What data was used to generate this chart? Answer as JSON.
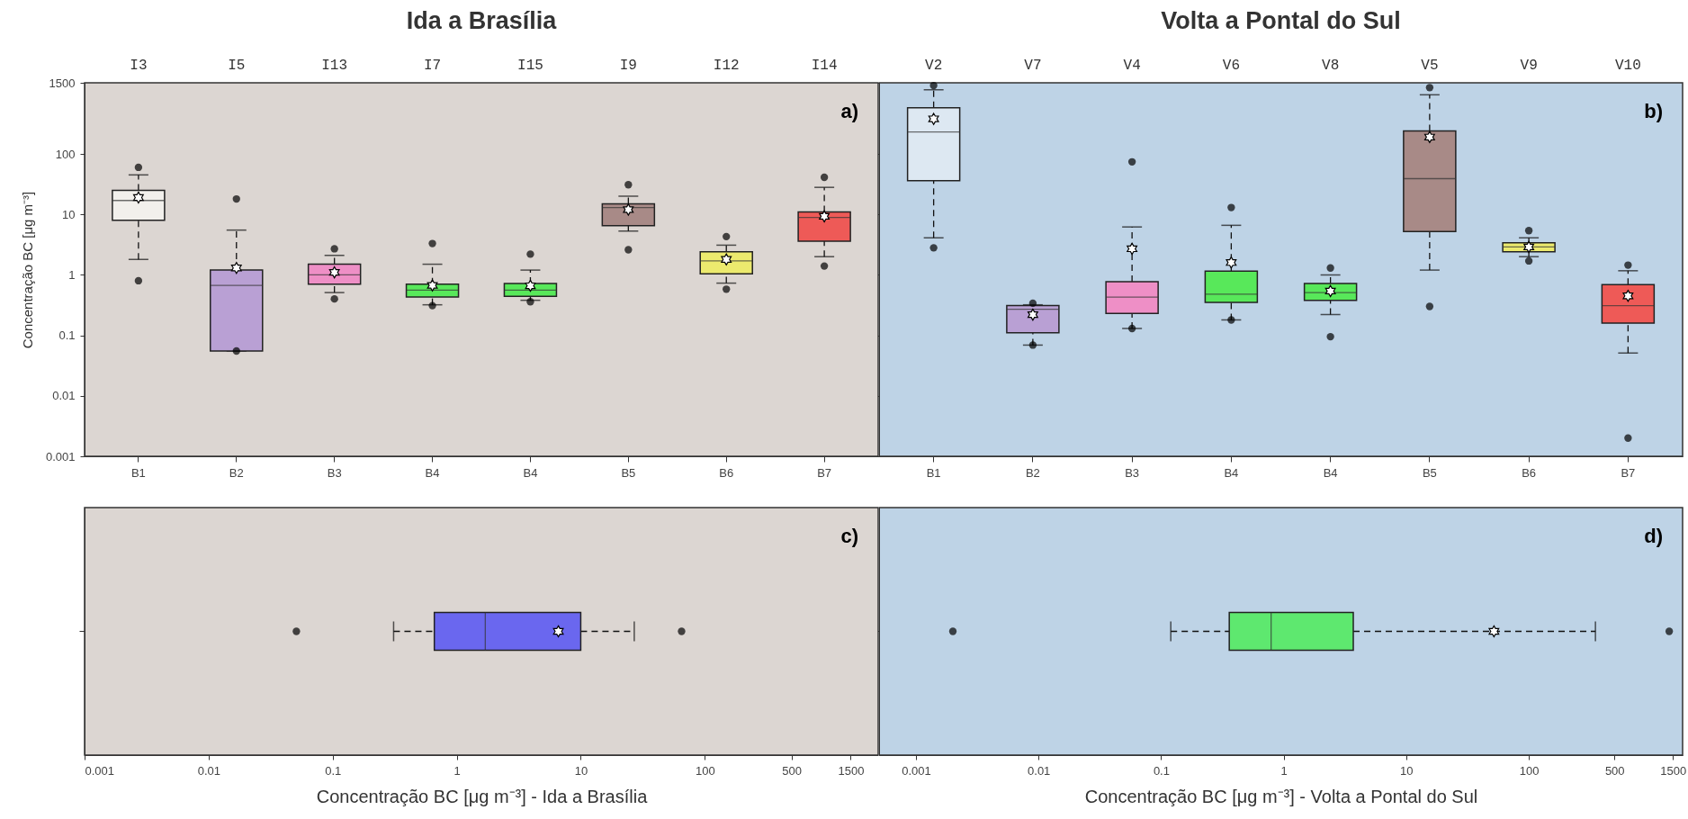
{
  "chart_data": [
    {
      "type": "box",
      "title": "Ida a Brasília",
      "ylabel": "Concentração BC [μg m⁻³]",
      "categories": [
        "B1",
        "B2",
        "B3",
        "B4",
        "B4",
        "B5",
        "B6",
        "B7"
      ],
      "colors": [
        "#f2f0ec",
        "#b9a0d4",
        "#ee8fc6",
        "#58e85a",
        "#58e85a",
        "#a88a87",
        "#ecea6e",
        "#ee5a57"
      ],
      "log": "y",
      "ylim": [
        0.001,
        1500
      ],
      "yticks": [
        0.001,
        0.01,
        0.1,
        1,
        10,
        100,
        1500
      ],
      "marker": "circle",
      "boxes": [
        {
          "low": 1.8,
          "q1": 8,
          "median": 17,
          "q3": 25,
          "high": 45,
          "mean": 19,
          "outliers": [
            0.8,
            60
          ]
        },
        {
          "low": 0.055,
          "q1": 0.055,
          "median": 0.67,
          "q3": 1.2,
          "high": 5.5,
          "mean": 1.3,
          "outliers": [
            0.055,
            18
          ]
        },
        {
          "low": 0.51,
          "q1": 0.7,
          "median": 1.0,
          "q3": 1.5,
          "high": 2.1,
          "mean": 1.1,
          "outliers": [
            0.4,
            2.7
          ]
        },
        {
          "low": 0.32,
          "q1": 0.43,
          "median": 0.56,
          "q3": 0.7,
          "high": 1.5,
          "mean": 0.67,
          "outliers": [
            0.31,
            3.3
          ]
        },
        {
          "low": 0.38,
          "q1": 0.44,
          "median": 0.56,
          "q3": 0.72,
          "high": 1.2,
          "mean": 0.66,
          "outliers": [
            0.36,
            2.2
          ]
        },
        {
          "low": 5.3,
          "q1": 6.5,
          "median": 13,
          "q3": 15,
          "high": 20,
          "mean": 12,
          "outliers": [
            2.6,
            31
          ]
        },
        {
          "low": 0.73,
          "q1": 1.04,
          "median": 1.7,
          "q3": 2.4,
          "high": 3.1,
          "mean": 1.8,
          "outliers": [
            0.58,
            4.3
          ]
        },
        {
          "low": 2.0,
          "q1": 3.6,
          "median": 8.9,
          "q3": 11,
          "high": 28,
          "mean": 9.3,
          "outliers": [
            1.4,
            41
          ]
        }
      ],
      "annotations": [
        "a)",
        "I3",
        "I5",
        "I13",
        "I7",
        "I15",
        "I9",
        "I12",
        "I14"
      ]
    },
    {
      "type": "box",
      "title": "Volta a Pontal do Sul",
      "categories": [
        "B1",
        "B2",
        "B3",
        "B4",
        "B4",
        "B5",
        "B6",
        "B7"
      ],
      "colors": [
        "#dde8f2",
        "#b9a0d4",
        "#ee8fc6",
        "#58e85a",
        "#58e85a",
        "#a88a87",
        "#ecea6e",
        "#ee5a57"
      ],
      "log": "y",
      "ylim": [
        0.001,
        1500
      ],
      "yticks": [
        0.001,
        0.01,
        0.1,
        1,
        10,
        100,
        1500
      ],
      "tick_labels": "x",
      "marker": "circle",
      "boxes": [
        {
          "low": 4.1,
          "q1": 36,
          "median": 230,
          "q3": 580,
          "high": 1150,
          "mean": 380,
          "outliers": [
            2.8,
            1350
          ]
        },
        {
          "low": 0.069,
          "q1": 0.11,
          "median": 0.27,
          "q3": 0.31,
          "high": 0.32,
          "mean": 0.22,
          "outliers": [
            0.069,
            0.34
          ]
        },
        {
          "low": 0.13,
          "q1": 0.23,
          "median": 0.43,
          "q3": 0.77,
          "high": 6.2,
          "mean": 2.7,
          "outliers": [
            0.13,
            74
          ]
        },
        {
          "low": 0.18,
          "q1": 0.35,
          "median": 0.48,
          "q3": 1.15,
          "high": 6.6,
          "mean": 1.6,
          "outliers": [
            0.18,
            13
          ]
        },
        {
          "low": 0.22,
          "q1": 0.38,
          "median": 0.51,
          "q3": 0.72,
          "high": 1.0,
          "mean": 0.54,
          "outliers": [
            0.095,
            1.3
          ]
        },
        {
          "low": 1.2,
          "q1": 5.2,
          "median": 39,
          "q3": 240,
          "high": 950,
          "mean": 190,
          "outliers": [
            0.3,
            1250
          ]
        },
        {
          "low": 2.0,
          "q1": 2.4,
          "median": 2.9,
          "q3": 3.4,
          "high": 4.1,
          "mean": 2.9,
          "outliers": [
            1.7,
            5.4
          ]
        },
        {
          "low": 0.051,
          "q1": 0.16,
          "median": 0.31,
          "q3": 0.69,
          "high": 1.17,
          "mean": 0.45,
          "outliers": [
            0.002,
            1.45
          ]
        }
      ],
      "annotations": [
        "b)",
        "V2",
        "V7",
        "V4",
        "V6",
        "V8",
        "V5",
        "V9",
        "V10"
      ]
    },
    {
      "type": "box",
      "orientation": "horizontal",
      "xlabel": "Concentração BC [μg m⁻³] - Ida a Brasília",
      "categories": [
        null
      ],
      "colors": [
        "#6a67ef"
      ],
      "log": "x",
      "xlim": [
        0.001,
        2500
      ],
      "xticks": [
        0.001,
        0.01,
        0.1,
        1,
        10,
        100,
        500,
        1500
      ],
      "tick_labels": "x",
      "marker": "circle",
      "boxes": [
        {
          "low": 0.31,
          "q1": 0.66,
          "median": 1.7,
          "q3": 10,
          "high": 27,
          "mean": 6.6,
          "outliers": [
            0.051,
            65
          ]
        }
      ],
      "annotations": [
        "c)"
      ]
    },
    {
      "type": "box",
      "orientation": "horizontal",
      "xlabel": "Concentração BC [μg m⁻³] - Volta a Pontal do Sul",
      "categories": [
        null
      ],
      "colors": [
        "#5ee86f"
      ],
      "log": "x",
      "xlim": [
        0.0005,
        1800
      ],
      "xticks": [
        0.001,
        0.01,
        0.1,
        1,
        10,
        100,
        500,
        1500
      ],
      "tick_labels": "x",
      "marker": "circle",
      "boxes": [
        {
          "low": 0.12,
          "q1": 0.36,
          "median": 0.79,
          "q3": 3.7,
          "high": 350,
          "mean": 52,
          "outliers": [
            0.002,
            1400
          ]
        }
      ],
      "annotations": [
        "d)"
      ]
    }
  ]
}
